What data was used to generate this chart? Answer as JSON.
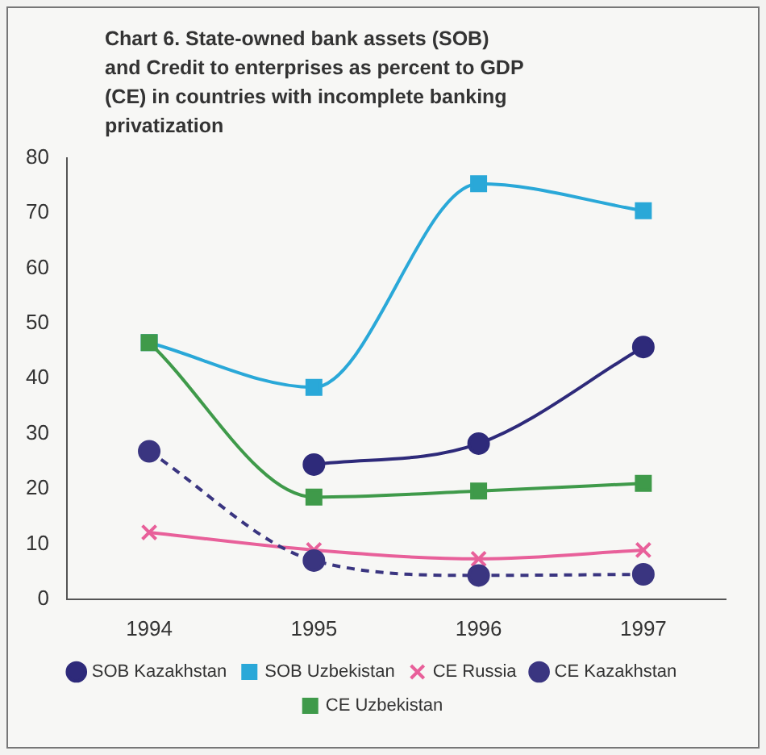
{
  "chart_data": {
    "type": "line",
    "title": "Chart 6. State-owned bank assets (SOB) and Credit to enterprises as percent to GDP (CE) in countries with incomplete banking privatization",
    "categories": [
      "1994",
      "1995",
      "1996",
      "1997"
    ],
    "series": [
      {
        "name": "SOB Kazakhstan",
        "color": "#2e2a7a",
        "marker": "circle",
        "line_style": "solid",
        "values": [
          null,
          24.4,
          28.2,
          45.7
        ]
      },
      {
        "name": "SOB Uzbekistan",
        "color": "#2aa8d8",
        "marker": "square",
        "line_style": "solid",
        "values": [
          46.5,
          38.4,
          75.3,
          70.4
        ]
      },
      {
        "name": "CE Russia",
        "color": "#e8609a",
        "marker": "cross",
        "line_style": "solid",
        "values": [
          12.1,
          8.9,
          7.3,
          8.9
        ]
      },
      {
        "name": "CE Kazakhstan",
        "color": "#3a3580",
        "marker": "circle",
        "line_style": "dashed",
        "values": [
          26.8,
          7.0,
          4.3,
          4.5
        ]
      },
      {
        "name": "CE Uzbekistan",
        "color": "#3f9a4a",
        "marker": "square",
        "line_style": "solid",
        "values": [
          46.5,
          18.5,
          19.6,
          21.0
        ]
      }
    ],
    "ylim": [
      0,
      80
    ],
    "yticks": [
      0,
      10,
      20,
      30,
      40,
      50,
      60,
      70,
      80
    ],
    "grid": false,
    "legend": "bottom"
  }
}
